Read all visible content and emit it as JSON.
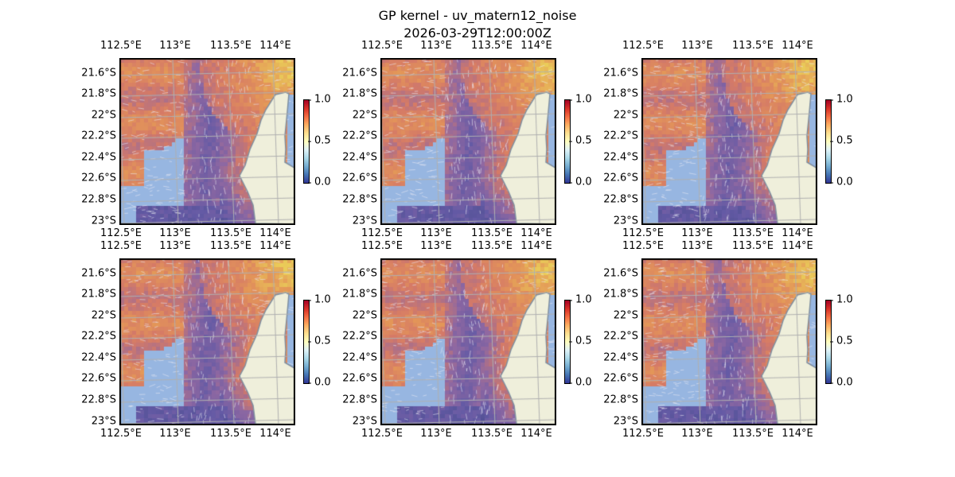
{
  "figure": {
    "title": "GP kernel - uv_matern12_noise",
    "subtitle": "2026-03-29T12:00:00Z"
  },
  "panels": [
    {
      "id": 1
    },
    {
      "id": 2
    },
    {
      "id": 3
    },
    {
      "id": 4
    },
    {
      "id": 5
    },
    {
      "id": 6
    }
  ],
  "axes": {
    "lon_ticks": [
      "112.5°E",
      "113°E",
      "113.5°E",
      "114°E"
    ],
    "lat_ticks": [
      "21.6°S",
      "21.8°S",
      "22°S",
      "22.2°S",
      "22.4°S",
      "22.6°S",
      "22.8°S",
      "23°S"
    ]
  },
  "colorbar": {
    "ticks": [
      "1.0",
      "0.5",
      "0.0"
    ],
    "range": [
      0,
      1
    ],
    "colormap": "RdYlBu_r"
  },
  "colors": {
    "water": "#97b6e1",
    "land": "#efefdb",
    "coast": "#7f8fa0",
    "grid": "#b0b0b0"
  }
}
